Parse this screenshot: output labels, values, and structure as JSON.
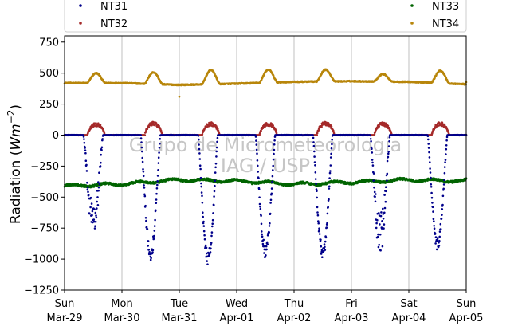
{
  "chart_data": {
    "type": "scatter",
    "title": "",
    "ylabel": "Radiation",
    "ylabel_unit_base": "Wm",
    "ylabel_unit_exp": "−2",
    "ylim": [
      -1250,
      800
    ],
    "yticks": [
      -1250,
      -1000,
      -750,
      -500,
      -250,
      0,
      250,
      500,
      750
    ],
    "ytick_labels": [
      "−1250",
      "−1000",
      "−750",
      "−500",
      "−250",
      "0",
      "250",
      "500",
      "750"
    ],
    "xlim": [
      0,
      7
    ],
    "xtick_days": [
      "Sun",
      "Mon",
      "Tue",
      "Wed",
      "Thu",
      "Fri",
      "Sat",
      "Sun"
    ],
    "xtick_dates": [
      "Mar-29",
      "Mar-30",
      "Mar-31",
      "Apr-01",
      "Apr-02",
      "Apr-03",
      "Apr-04",
      "Apr-05"
    ],
    "grid": "vertical",
    "legend_position": "top",
    "watermark": [
      "Grupo de Micrometeorologia",
      "IAG / USP"
    ],
    "series": [
      {
        "name": "NT31",
        "color": "#00008b",
        "baseline": 0,
        "day_min": [
          -840,
          -1010,
          -1050,
          -990,
          -1010,
          -980,
          -930
        ],
        "peak_offset": 0.5,
        "half_width": 0.17,
        "noise": 0.18
      },
      {
        "name": "NT32",
        "color": "#a52a2a",
        "baseline": 0,
        "day_max": [
          95,
          105,
          100,
          100,
          105,
          100,
          100
        ],
        "peak_offset": 0.55,
        "half_width": 0.15
      },
      {
        "name": "NT33",
        "color": "#006400",
        "daily_values": [
          -410,
          -395,
          -360,
          -370,
          -395,
          -380,
          -360,
          -370
        ],
        "noise_amp": 18
      },
      {
        "name": "NT34",
        "color": "#b8860b",
        "base": [
          420,
          420,
          405,
          415,
          430,
          435,
          430,
          410
        ],
        "amp": [
          80,
          95,
          115,
          105,
          95,
          60,
          100
        ],
        "peak_offset": 0.55,
        "half_width": 0.16,
        "outlier": {
          "x": 2.0,
          "y": 310
        }
      }
    ],
    "legend": {
      "left": [
        "NT31",
        "NT32"
      ],
      "right": [
        "NT33",
        "NT34"
      ]
    }
  }
}
